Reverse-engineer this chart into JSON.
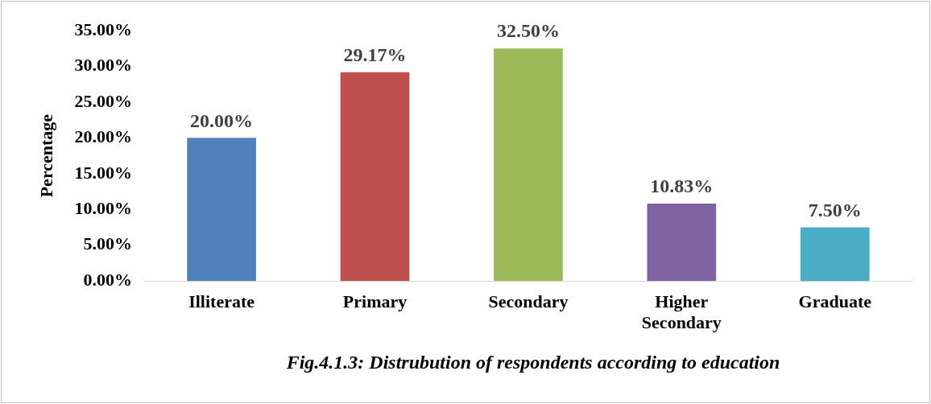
{
  "chart_data": {
    "type": "bar",
    "ylabel": "Percentage",
    "categories": [
      "Illiterate",
      "Primary",
      "Secondary",
      "Higher Secondary",
      "Graduate"
    ],
    "values": [
      20.0,
      29.17,
      32.5,
      10.83,
      7.5
    ],
    "colors": [
      "#4f81bd",
      "#c0504d",
      "#9bbb59",
      "#8064a2",
      "#4bacc6"
    ],
    "value_labels": [
      "20.00%",
      "29.17%",
      "32.50%",
      "10.83%",
      "7.50%"
    ],
    "ylim": [
      0,
      35
    ],
    "yticks": [
      {
        "value": 0,
        "label": "0.00%"
      },
      {
        "value": 5,
        "label": "5.00%"
      },
      {
        "value": 10,
        "label": "10.00%"
      },
      {
        "value": 15,
        "label": "15.00%"
      },
      {
        "value": 20,
        "label": "20.00%"
      },
      {
        "value": 25,
        "label": "25.00%"
      },
      {
        "value": 30,
        "label": "30.00%"
      },
      {
        "value": 35,
        "label": "35.00%"
      }
    ],
    "grid": false,
    "legend": false,
    "annotations": [
      "Fig.4.1.3: Distrubution of respondents according to education"
    ]
  }
}
